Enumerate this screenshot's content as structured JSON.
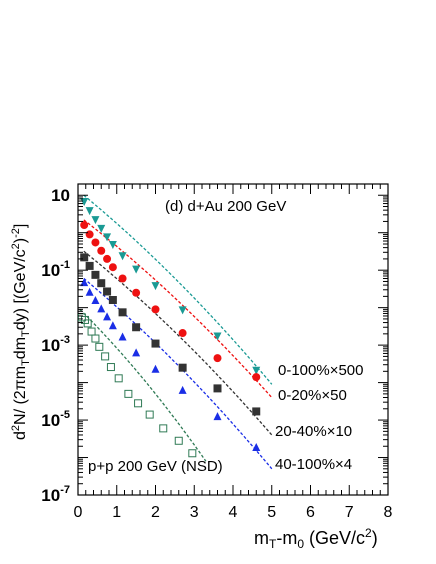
{
  "chart_data": {
    "type": "scatter",
    "panel_label": "(d) d+Au 200 GeV",
    "xlabel_main": "m",
    "xlabel_sub": "T",
    "xlabel_rest": "-m",
    "xlabel_sub2": "0",
    "xlabel_unit": " (GeV/c",
    "xlabel_unit_sup": "2",
    "xlabel_unit_end": ")",
    "ylabel": "d²N/(2πm_T dm_T dy) [(GeV/c²)⁻²]",
    "ylabel_parts": {
      "a": "d",
      "a_sup": "2",
      "b": "N/ (2πm",
      "b_sub": "T",
      "c": "dm",
      "c_sub": "T",
      "d": "dy) [(GeV/c",
      "d_sup": "2",
      "e": ")",
      "e_sup": "-2",
      "f": "]"
    },
    "xlim": [
      0,
      8
    ],
    "ylim_log10": [
      -7,
      1.3
    ],
    "log_y": true,
    "x_ticks": [
      "0",
      "1",
      "2",
      "3",
      "4",
      "5",
      "6",
      "7",
      "8"
    ],
    "y_ticks": [
      {
        "base": "10",
        "exp": "-7",
        "pow": -7
      },
      {
        "base": "10",
        "exp": "-5",
        "pow": -5
      },
      {
        "base": "10",
        "exp": "-3",
        "pow": -3
      },
      {
        "base": "10",
        "exp": "-1",
        "pow": -1
      },
      {
        "base": "10",
        "exp": "",
        "pow": 1
      }
    ],
    "series": [
      {
        "name": "0-100%×500",
        "color": "#1a9a94",
        "marker": "triangle-down",
        "x": [
          0.16,
          0.3,
          0.45,
          0.6,
          0.75,
          0.9,
          1.15,
          1.5,
          2.0,
          2.7,
          3.6,
          4.6
        ],
        "y": [
          7.0,
          4.0,
          2.3,
          1.35,
          0.8,
          0.5,
          0.25,
          0.11,
          0.04,
          0.009,
          0.0018,
          0.00022
        ],
        "fit_x": [
          0.15,
          5.0
        ],
        "fit_y": [
          10.0,
          9e-05
        ]
      },
      {
        "name": "0-20%×50",
        "color": "#ee1111",
        "marker": "circle",
        "x": [
          0.16,
          0.3,
          0.45,
          0.6,
          0.75,
          0.9,
          1.15,
          1.5,
          2.0,
          2.7,
          3.6,
          4.6
        ],
        "y": [
          1.6,
          0.9,
          0.55,
          0.33,
          0.2,
          0.12,
          0.06,
          0.025,
          0.009,
          0.0021,
          0.00045,
          0.00014
        ],
        "fit_x": [
          0.15,
          5.0
        ],
        "fit_y": [
          2.2,
          4e-05
        ]
      },
      {
        "name": "20-40%×10",
        "color": "#333333",
        "marker": "square",
        "x": [
          0.16,
          0.3,
          0.45,
          0.6,
          0.75,
          0.9,
          1.15,
          1.5,
          2.0,
          2.7,
          3.6,
          4.6
        ],
        "y": [
          0.22,
          0.13,
          0.075,
          0.045,
          0.027,
          0.016,
          0.0075,
          0.003,
          0.0011,
          0.00025,
          7e-05,
          1.7e-05
        ],
        "fit_x": [
          0.15,
          5.0
        ],
        "fit_y": [
          0.32,
          4e-06
        ]
      },
      {
        "name": "40-100%×4",
        "color": "#1a2ee6",
        "marker": "triangle-up",
        "x": [
          0.16,
          0.3,
          0.45,
          0.6,
          0.75,
          0.9,
          1.15,
          1.5,
          2.0,
          2.7,
          3.6,
          4.6
        ],
        "y": [
          0.045,
          0.025,
          0.015,
          0.009,
          0.0055,
          0.0032,
          0.0016,
          0.0006,
          0.00022,
          6e-05,
          1.2e-05,
          1.8e-06
        ],
        "fit_x": [
          0.15,
          5.0
        ],
        "fit_y": [
          0.06,
          5e-07
        ]
      },
      {
        "name": "p+p 200 GeV (NSD)",
        "color": "#2f7a55",
        "marker": "open-square",
        "x": [
          0.1,
          0.18,
          0.25,
          0.35,
          0.45,
          0.55,
          0.7,
          0.85,
          1.05,
          1.3,
          1.55,
          1.85,
          2.2,
          2.6,
          2.95
        ],
        "y": [
          0.0055,
          0.0047,
          0.0038,
          0.0023,
          0.0015,
          0.0009,
          0.0005,
          0.00026,
          0.00013,
          5e-05,
          2.8e-05,
          1.4e-05,
          6e-06,
          2.8e-06,
          1.3e-06
        ],
        "fit_x": [
          0.05,
          3.3
        ],
        "fit_y": [
          0.009,
          8e-07
        ]
      }
    ],
    "legend_labels": [
      "0-100%×500",
      "0-20%×50",
      "20-40%×10",
      "40-100%×4"
    ],
    "pp_label": "p+p 200 GeV (NSD)"
  }
}
